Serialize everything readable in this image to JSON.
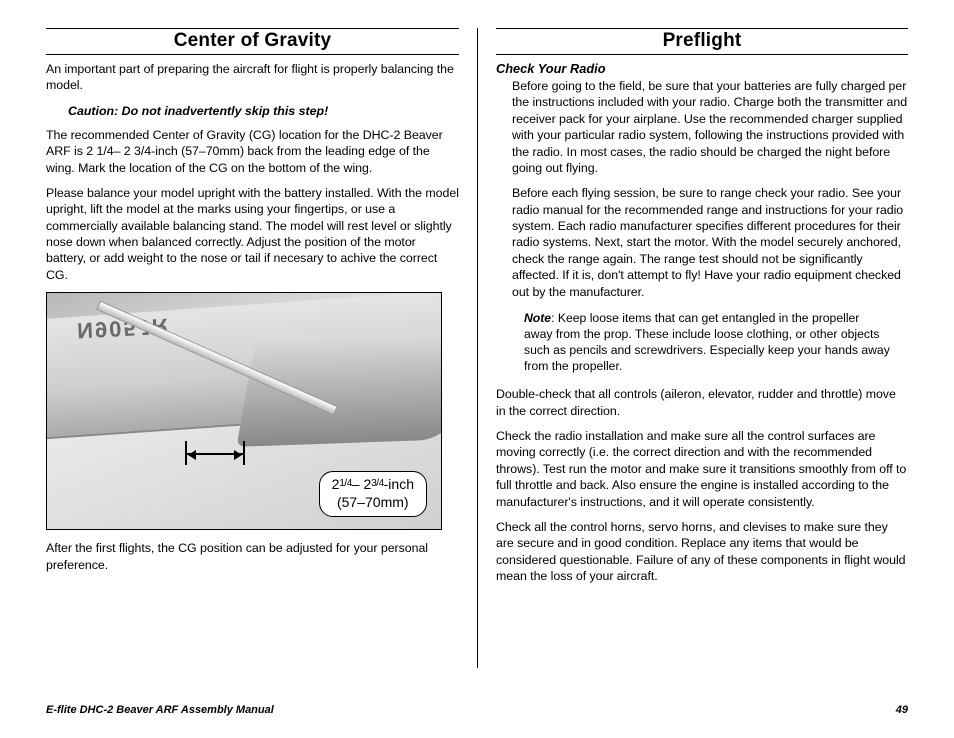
{
  "left": {
    "heading": "Center of Gravity",
    "intro": "An important part of preparing the aircraft for flight is properly balancing the model.",
    "caution": "Caution: Do not inadvertently skip this step!",
    "p1": "The recommended Center of Gravity (CG) location for the DHC-2 Beaver ARF is 2 1/4– 2 3/4-inch (57–70mm) back from the leading edge of the wing. Mark the location of the CG on the bottom of the wing.",
    "p2": "Please balance your model upright with the battery installed. With the model upright, lift the model at the marks using your fingertips, or use a commercially available balancing stand. The model will rest level or slightly nose down when balanced correctly. Adjust the position of the motor battery, or add weight to the nose or tail if necesary to achive the correct CG.",
    "figure": {
      "registration": "N905JR",
      "dim_line1_prefix": "2",
      "dim_line1_frac1": "1/4",
      "dim_line1_mid": "– 2",
      "dim_line1_frac2": "3/4",
      "dim_line1_suffix": "-inch",
      "dim_line2": "(57–70mm)",
      "cg_range_mm": [
        57,
        70
      ],
      "cg_range_in": [
        2.25,
        2.75
      ]
    },
    "p3": "After the first flights, the CG position can be adjusted for your personal preference."
  },
  "right": {
    "heading": "Preflight",
    "subhead": "Check Your Radio",
    "p1": "Before going to the field, be sure that your batteries are fully charged per the instructions included with your radio. Charge both the transmitter and receiver pack for your airplane. Use the recommended charger supplied with your particular radio system, following the instructions provided with the radio. In most cases, the radio should be charged the night before going out flying.",
    "p2": "Before each flying session, be sure to range check your radio. See your radio manual for the recommended range and instructions for your radio system. Each radio manufacturer specifies different procedures for their radio systems. Next, start the motor. With the model securely anchored, check the range again. The range test should not be significantly affected. If it is, don't attempt to fly! Have your radio equipment checked out by the manufacturer.",
    "note_label": "Note",
    "note_body": ": Keep loose items that can get entangled in the propeller away from the prop. These include loose clothing, or other objects such as pencils and screwdrivers. Especially keep your hands away from the propeller.",
    "p3": "Double-check that all controls (aileron, elevator, rudder and throttle) move in the correct direction.",
    "p4": "Check the radio installation and make sure all the control surfaces are moving correctly (i.e. the correct direction and with the recommended throws). Test run the motor and make sure it transitions smoothly from off to full throttle and back. Also ensure the engine is installed according to the manufacturer's instructions, and it will operate consistently.",
    "p5": "Check all the control horns, servo horns, and clevises to make sure they are secure and in good condition. Replace any items that would be considered questionable. Failure of any of these components in flight would mean the loss of your aircraft."
  },
  "footer": {
    "title": "E-flite DHC-2 Beaver ARF Assembly Manual",
    "page": "49"
  },
  "colors": {
    "text": "#000000",
    "rule": "#000000",
    "background": "#ffffff"
  }
}
